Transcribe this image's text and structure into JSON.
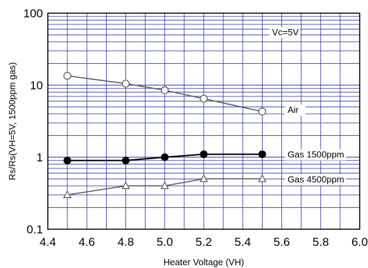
{
  "chart_data": {
    "type": "line",
    "title": "",
    "xlabel": "Heater Voltage (VH)",
    "ylabel": "Rs/Rs(VH=5V, 1500ppm gas)",
    "x_scale": "linear",
    "y_scale": "log",
    "xlim": [
      4.4,
      6.0
    ],
    "ylim": [
      0.1,
      100
    ],
    "x_ticks": [
      "4.4",
      "4.6",
      "4.8",
      "5.0",
      "5.2",
      "5.4",
      "5.6",
      "5.8",
      "6.0"
    ],
    "y_ticks": [
      "0.1",
      "1",
      "10",
      "100"
    ],
    "grid": true,
    "annotation": "Vc=5V",
    "series": [
      {
        "name": "Air",
        "marker": "open-circle",
        "color": "#555555",
        "x": [
          4.5,
          4.8,
          5.0,
          5.2,
          5.5
        ],
        "y": [
          13.5,
          10.5,
          8.5,
          6.5,
          4.3
        ]
      },
      {
        "name": "Gas 1500ppm",
        "marker": "filled-circle",
        "color": "#000000",
        "x": [
          4.5,
          4.8,
          5.0,
          5.2,
          5.5
        ],
        "y": [
          0.9,
          0.9,
          1.0,
          1.1,
          1.1
        ]
      },
      {
        "name": "Gas 4500ppm",
        "marker": "open-triangle",
        "color": "#555555",
        "x": [
          4.5,
          4.8,
          5.0,
          5.2,
          5.5
        ],
        "y": [
          0.3,
          0.4,
          0.4,
          0.5,
          0.5
        ]
      }
    ],
    "colors": {
      "grid": "#2a2aa0",
      "frame": "#000000"
    }
  }
}
